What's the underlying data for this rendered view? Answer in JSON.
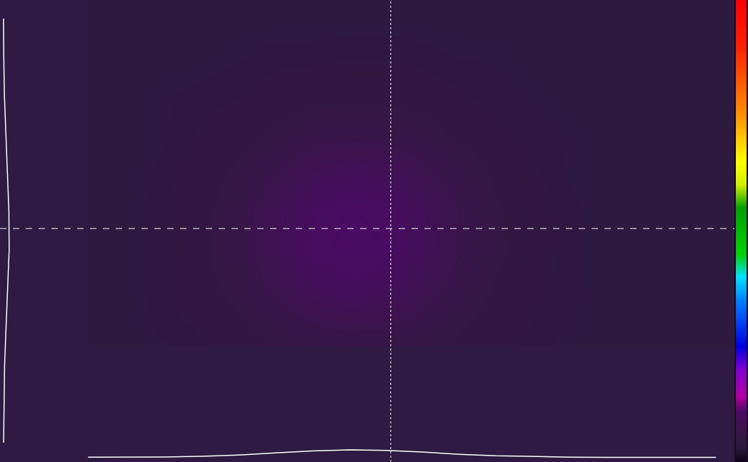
{
  "chart_data": {
    "type": "heatmap",
    "tick_labels": false,
    "grid": false,
    "xlim": [
      0,
      1030
    ],
    "ylim": [
      0,
      647
    ],
    "zlim": [
      0,
      100
    ],
    "x": [
      25.75,
      77.25,
      128.75,
      180.25,
      231.75,
      283.25,
      334.75,
      386.25,
      437.75,
      489.25,
      540.75,
      592.25,
      643.75,
      695.25,
      746.75,
      798.25,
      849.75,
      901.25,
      952.75,
      1004.25
    ],
    "y": [
      27,
      81,
      135,
      189,
      243,
      297,
      351,
      405,
      459,
      513,
      567,
      621
    ],
    "cells": [
      [
        4.0,
        4.0,
        4.0,
        4.0,
        4.0,
        4.0,
        4.0,
        4.0,
        4.1,
        4.1,
        4.1,
        4.0,
        4.0,
        4.0,
        4.0,
        4.0,
        4.0,
        4.0,
        4.0,
        4.0
      ],
      [
        4.0,
        4.0,
        4.0,
        4.0,
        4.0,
        4.0,
        4.1,
        4.2,
        4.4,
        4.4,
        4.4,
        4.3,
        4.2,
        4.0,
        4.0,
        4.0,
        4.0,
        4.0,
        4.0,
        4.0
      ],
      [
        4.0,
        4.0,
        4.0,
        4.0,
        4.0,
        4.2,
        4.4,
        4.8,
        5.1,
        5.3,
        5.2,
        4.9,
        4.6,
        4.3,
        4.1,
        4.0,
        4.0,
        4.0,
        4.0,
        4.0
      ],
      [
        4.0,
        4.0,
        4.0,
        4.0,
        4.2,
        4.4,
        5.0,
        5.8,
        6.6,
        7.0,
        6.9,
        6.2,
        5.3,
        4.7,
        4.3,
        4.1,
        4.0,
        4.0,
        4.0,
        4.0
      ],
      [
        4.0,
        4.0,
        4.0,
        4.0,
        4.3,
        4.8,
        5.7,
        7.1,
        8.6,
        9.2,
        8.9,
        7.7,
        6.2,
        5.1,
        4.5,
        4.2,
        4.0,
        4.0,
        4.0,
        4.0
      ],
      [
        4.0,
        4.0,
        4.0,
        4.0,
        4.3,
        5.0,
        6.2,
        8.0,
        9.9,
        10.8,
        10.4,
        8.8,
        6.8,
        5.5,
        4.6,
        4.2,
        4.0,
        4.0,
        4.0,
        4.0
      ],
      [
        4.0,
        4.0,
        4.0,
        4.0,
        4.3,
        4.9,
        6.1,
        7.9,
        9.6,
        10.5,
        10.1,
        8.6,
        6.7,
        5.4,
        4.6,
        4.2,
        4.0,
        4.0,
        4.0,
        4.0
      ],
      [
        4.0,
        4.0,
        4.0,
        4.0,
        4.2,
        4.7,
        5.5,
        6.8,
        8.1,
        8.7,
        8.4,
        7.3,
        6.0,
        5.0,
        4.4,
        4.1,
        4.0,
        4.0,
        4.0,
        4.0
      ],
      [
        4.0,
        4.0,
        4.0,
        4.0,
        4.1,
        4.4,
        4.8,
        5.5,
        6.2,
        6.5,
        6.3,
        5.8,
        5.0,
        4.5,
        4.2,
        4.1,
        4.0,
        4.0,
        4.0,
        4.0
      ],
      [
        4.0,
        4.0,
        4.0,
        4.0,
        4.1,
        4.2,
        4.3,
        4.6,
        4.9,
        5.0,
        5.0,
        4.7,
        4.4,
        4.2,
        4.1,
        4.0,
        4.0,
        4.0,
        4.0,
        4.0
      ],
      [
        4.0,
        4.0,
        4.0,
        4.0,
        4.0,
        4.0,
        4.1,
        4.2,
        4.2,
        4.3,
        4.3,
        4.2,
        4.1,
        4.1,
        4.0,
        4.0,
        4.0,
        4.0,
        4.0,
        4.0
      ],
      [
        4.0,
        4.0,
        4.0,
        4.0,
        4.0,
        4.0,
        4.0,
        4.0,
        4.0,
        4.0,
        4.0,
        4.0,
        4.0,
        4.0,
        4.0,
        4.0,
        4.0,
        4.0,
        4.0,
        4.0
      ]
    ],
    "crosshair": {
      "x": 548,
      "y": 327
    },
    "profiles": true
  }
}
